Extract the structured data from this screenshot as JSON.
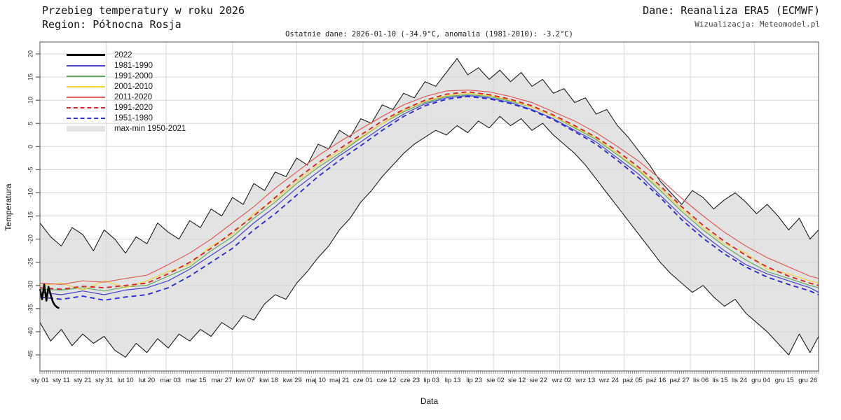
{
  "header": {
    "title_line1": "Przebieg temperatury w roku 2026",
    "title_line2": "Region: Północna Rosja",
    "source": "Dane: Reanaliza ERA5 (ECMWF)",
    "credit": "Wizualizacja: Meteomodel.pl",
    "subtitle": "Ostatnie dane: 2026-01-10 (-34.9°C, anomalia (1981-2010): -3.2°C)"
  },
  "axes": {
    "x_label": "Data",
    "y_label": "Temperatura",
    "y_ticks": [
      20,
      15,
      10,
      5,
      0,
      -5,
      -10,
      -15,
      -20,
      -25,
      -30,
      -35,
      -40,
      -45
    ],
    "x_tick_labels": [
      "sty 01",
      "sty 11",
      "sty 21",
      "sty 31",
      "lut 10",
      "lut 20",
      "mar 03",
      "mar 15",
      "mar 27",
      "kwi 07",
      "kwi 18",
      "kwi 29",
      "maj 10",
      "maj 21",
      "cze 01",
      "cze 12",
      "cze 23",
      "lip 03",
      "lip 13",
      "lip 23",
      "sie 02",
      "sie 12",
      "sie 22",
      "wrz 02",
      "wrz 13",
      "wrz 24",
      "paź 05",
      "paź 16",
      "paź 27",
      "lis 06",
      "lis 15",
      "lis 24",
      "gru 04",
      "gru 15",
      "gru 26"
    ],
    "x_tick_days": [
      1,
      11,
      21,
      31,
      41,
      51,
      62,
      74,
      86,
      97,
      108,
      119,
      130,
      141,
      152,
      163,
      174,
      184,
      194,
      204,
      214,
      224,
      234,
      245,
      256,
      267,
      278,
      289,
      300,
      310,
      319,
      328,
      338,
      349,
      360
    ]
  },
  "legend": {
    "items": [
      {
        "label": "2022",
        "color": "#000000",
        "style": "solid",
        "width": 3
      },
      {
        "label": "1981-1990",
        "color": "#4545cc",
        "style": "solid",
        "width": 2
      },
      {
        "label": "1991-2000",
        "color": "#62a862",
        "style": "solid",
        "width": 2
      },
      {
        "label": "2001-2010",
        "color": "#f0d23c",
        "style": "solid",
        "width": 2
      },
      {
        "label": "2011-2020",
        "color": "#e05c5c",
        "style": "solid",
        "width": 2
      },
      {
        "label": "1991-2020",
        "color": "#d42a2a",
        "style": "dashed",
        "width": 2
      },
      {
        "label": "1951-1980",
        "color": "#2d2dd4",
        "style": "dashed",
        "width": 2
      },
      {
        "label": "max-min 1950-2021",
        "color": "#e3e3e3",
        "style": "band",
        "width": 8
      }
    ]
  },
  "chart_data": {
    "type": "line",
    "title": "Przebieg temperatury w roku 2026 — Region: Północna Rosja",
    "xlabel": "Data",
    "ylabel": "Temperatura",
    "ylim": [
      -48,
      22
    ],
    "grid": true,
    "legend_position": "top-left",
    "month_start_days": [
      32,
      60,
      91,
      121,
      152,
      182,
      213,
      244,
      274,
      305,
      335
    ],
    "last_observation": {
      "date": "2026-01-10",
      "value_c": -34.9,
      "anomaly_1981_2010_c": -3.2
    },
    "envelope": {
      "name": "max-min 1950-2021",
      "fill": "#e3e3e3",
      "stroke": "#1c1c1c",
      "x_days": [
        1,
        6,
        11,
        16,
        21,
        26,
        31,
        36,
        41,
        46,
        51,
        56,
        61,
        66,
        71,
        76,
        81,
        86,
        91,
        96,
        101,
        106,
        111,
        116,
        121,
        126,
        131,
        136,
        141,
        146,
        151,
        156,
        161,
        166,
        171,
        176,
        181,
        186,
        191,
        196,
        201,
        206,
        211,
        216,
        221,
        226,
        231,
        236,
        241,
        246,
        251,
        256,
        261,
        266,
        271,
        276,
        281,
        286,
        291,
        296,
        301,
        306,
        311,
        316,
        321,
        326,
        331,
        336,
        341,
        346,
        351,
        356,
        361,
        365
      ],
      "max": [
        -16.5,
        -19.5,
        -21.5,
        -17.5,
        -19.0,
        -22.5,
        -18.0,
        -20.0,
        -23.0,
        -19.5,
        -21.0,
        -16.5,
        -18.5,
        -20.0,
        -16.0,
        -17.5,
        -13.5,
        -15.0,
        -11.0,
        -12.5,
        -8.0,
        -9.5,
        -5.5,
        -6.5,
        -2.5,
        -4.0,
        0.5,
        -0.5,
        3.5,
        2.0,
        6.0,
        5.0,
        9.0,
        8.0,
        11.5,
        10.5,
        14.0,
        13.0,
        16.0,
        19.0,
        15.5,
        17.0,
        14.5,
        16.5,
        14.0,
        16.0,
        13.0,
        14.5,
        11.5,
        12.5,
        9.5,
        10.5,
        7.0,
        8.0,
        4.5,
        2.0,
        -1.0,
        -4.0,
        -7.5,
        -10.0,
        -12.5,
        -9.5,
        -11.0,
        -13.5,
        -11.5,
        -10.0,
        -12.0,
        -14.5,
        -12.5,
        -15.0,
        -18.0,
        -15.5,
        -20.0,
        -18.0
      ],
      "min": [
        -38.0,
        -42.0,
        -39.5,
        -43.0,
        -40.5,
        -42.5,
        -41.0,
        -44.0,
        -45.5,
        -42.5,
        -44.5,
        -41.5,
        -43.5,
        -40.5,
        -42.0,
        -39.5,
        -41.0,
        -38.0,
        -39.5,
        -36.5,
        -37.5,
        -34.0,
        -32.0,
        -33.0,
        -29.5,
        -27.0,
        -24.0,
        -21.5,
        -18.0,
        -15.5,
        -12.0,
        -9.5,
        -6.5,
        -4.0,
        -1.5,
        0.5,
        2.0,
        3.5,
        2.5,
        4.5,
        3.0,
        5.5,
        4.0,
        6.5,
        4.5,
        6.0,
        3.5,
        5.0,
        2.5,
        0.5,
        -1.5,
        -4.0,
        -7.0,
        -10.0,
        -13.0,
        -16.0,
        -19.0,
        -22.0,
        -25.0,
        -27.5,
        -29.5,
        -31.5,
        -30.0,
        -32.5,
        -34.5,
        -33.0,
        -36.0,
        -38.0,
        -40.0,
        -42.5,
        -45.0,
        -40.5,
        -44.5,
        -41.0
      ]
    },
    "x_days_means": [
      1,
      11,
      21,
      31,
      41,
      51,
      61,
      71,
      81,
      91,
      101,
      111,
      121,
      131,
      141,
      151,
      161,
      171,
      181,
      191,
      201,
      211,
      221,
      231,
      241,
      251,
      261,
      271,
      281,
      291,
      301,
      311,
      321,
      331,
      341,
      351,
      361,
      365
    ],
    "series": [
      {
        "name": "1981-1990",
        "color": "#4545cc",
        "dash": false,
        "width": 1.2,
        "x_ref": "x_days_means",
        "values": [
          -31.5,
          -32.0,
          -31.2,
          -32.0,
          -31.0,
          -30.5,
          -29.0,
          -26.5,
          -23.5,
          -20.5,
          -16.5,
          -13.0,
          -9.0,
          -5.5,
          -2.0,
          1.0,
          4.2,
          7.0,
          9.2,
          10.5,
          11.0,
          10.5,
          9.5,
          8.0,
          6.0,
          3.5,
          1.0,
          -2.5,
          -6.0,
          -10.5,
          -15.0,
          -19.0,
          -22.5,
          -25.5,
          -27.5,
          -29.0,
          -30.5,
          -31.5
        ]
      },
      {
        "name": "1991-2000",
        "color": "#62a862",
        "dash": false,
        "width": 1.2,
        "x_ref": "x_days_means",
        "values": [
          -30.8,
          -31.0,
          -30.5,
          -31.2,
          -30.3,
          -30.0,
          -28.0,
          -26.0,
          -22.5,
          -19.5,
          -15.5,
          -12.0,
          -8.0,
          -4.5,
          -1.5,
          1.8,
          5.0,
          7.5,
          9.5,
          10.8,
          11.2,
          10.8,
          9.8,
          8.5,
          6.5,
          4.0,
          1.5,
          -1.8,
          -5.2,
          -9.5,
          -14.0,
          -18.0,
          -21.5,
          -24.5,
          -27.0,
          -28.5,
          -30.0,
          -30.5
        ]
      },
      {
        "name": "2001-2010",
        "color": "#f0d23c",
        "dash": false,
        "width": 1.2,
        "x_ref": "x_days_means",
        "values": [
          -30.0,
          -29.5,
          -31.0,
          -29.0,
          -30.5,
          -29.0,
          -27.0,
          -25.5,
          -21.5,
          -19.0,
          -14.5,
          -11.5,
          -7.5,
          -4.0,
          -1.0,
          2.0,
          5.0,
          7.8,
          9.8,
          11.0,
          11.5,
          11.0,
          10.0,
          8.5,
          6.5,
          4.2,
          1.8,
          -1.5,
          -5.0,
          -9.0,
          -13.5,
          -17.5,
          -21.0,
          -23.0,
          -26.5,
          -27.5,
          -29.0,
          -29.5
        ]
      },
      {
        "name": "2011-2020",
        "color": "#e05c5c",
        "dash": false,
        "width": 1.2,
        "x_ref": "x_days_means",
        "values": [
          -29.5,
          -29.8,
          -29.0,
          -29.3,
          -28.5,
          -27.8,
          -25.5,
          -23.0,
          -20.0,
          -16.5,
          -13.0,
          -9.0,
          -5.5,
          -2.0,
          1.0,
          3.8,
          6.5,
          9.0,
          10.8,
          12.0,
          12.2,
          11.8,
          10.8,
          9.5,
          7.5,
          5.5,
          3.0,
          0.0,
          -3.2,
          -7.0,
          -11.2,
          -15.0,
          -18.5,
          -21.5,
          -24.0,
          -26.0,
          -28.0,
          -28.5
        ]
      },
      {
        "name": "1991-2020",
        "color": "#d42a2a",
        "dash": true,
        "width": 1.9,
        "x_ref": "x_days_means",
        "values": [
          -30.5,
          -30.8,
          -30.2,
          -30.5,
          -30.0,
          -29.5,
          -27.5,
          -25.0,
          -22.0,
          -18.5,
          -15.0,
          -11.0,
          -7.0,
          -3.5,
          -0.5,
          2.5,
          5.5,
          8.0,
          10.0,
          11.3,
          11.8,
          11.2,
          10.2,
          8.8,
          6.8,
          4.5,
          2.0,
          -1.0,
          -4.5,
          -8.5,
          -13.0,
          -17.0,
          -20.5,
          -23.5,
          -26.0,
          -28.0,
          -29.5,
          -30.0
        ]
      },
      {
        "name": "1951-1980",
        "color": "#2d2dd4",
        "dash": true,
        "width": 1.9,
        "x_ref": "x_days_means",
        "values": [
          -32.5,
          -33.0,
          -32.3,
          -33.2,
          -32.5,
          -32.0,
          -30.5,
          -28.0,
          -25.0,
          -22.0,
          -18.0,
          -14.5,
          -10.5,
          -6.5,
          -3.0,
          0.2,
          3.5,
          6.5,
          8.8,
          10.2,
          10.8,
          10.3,
          9.3,
          7.8,
          5.8,
          3.2,
          0.5,
          -3.0,
          -6.8,
          -11.0,
          -15.8,
          -19.8,
          -23.2,
          -26.0,
          -28.2,
          -29.8,
          -31.2,
          -32.0
        ]
      },
      {
        "name": "2022",
        "color": "#000000",
        "dash": false,
        "width": 2.6,
        "x_ref": "own",
        "x_days": [
          1,
          2,
          3,
          4,
          5,
          6,
          7,
          8,
          9,
          10
        ],
        "values": [
          -30.8,
          -33.0,
          -29.8,
          -33.3,
          -30.3,
          -32.0,
          -33.5,
          -34.3,
          -34.7,
          -34.9
        ]
      }
    ]
  }
}
